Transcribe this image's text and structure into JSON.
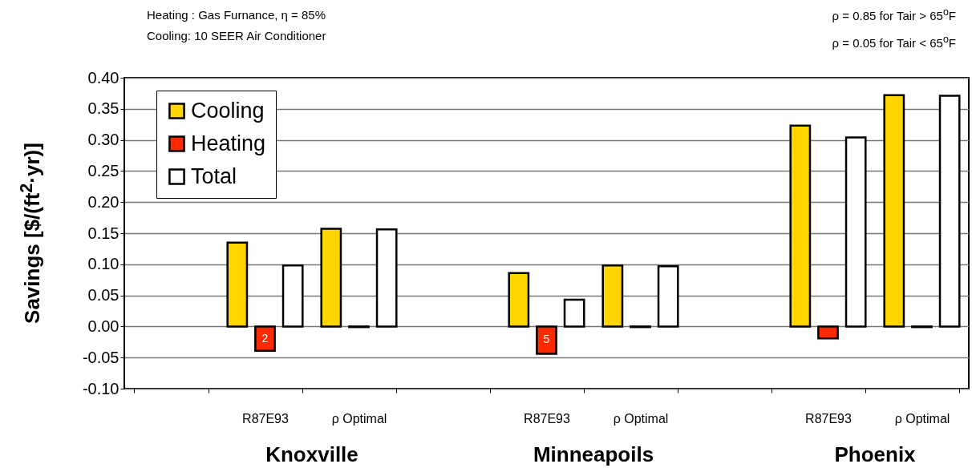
{
  "chart_data": {
    "type": "bar",
    "ylabel": "Savings [$/(ft$^{2}$·yr)]",
    "categories": [
      null,
      "R87E93",
      "ρ  Optimal",
      null,
      "R87E93",
      "ρ  Optimal",
      null,
      "R87E93",
      "ρ  Optimal"
    ],
    "series": [
      {
        "name": "Cooling",
        "color": "#ffd500",
        "values": [
          null,
          0.135,
          0.157,
          null,
          0.086,
          0.098,
          null,
          0.323,
          0.372
        ]
      },
      {
        "name": "Heating",
        "color": "#ff2a00",
        "values": [
          null,
          -0.039,
          -0.001,
          null,
          -0.044,
          -0.001,
          null,
          -0.019,
          -0.001
        ]
      },
      {
        "name": "Total",
        "color": "#ffffff",
        "values": [
          null,
          0.098,
          0.156,
          null,
          0.043,
          0.097,
          null,
          0.304,
          0.371
        ]
      }
    ],
    "ylim": [
      -0.1,
      0.4
    ],
    "yticks": [
      {
        "value": -0.1,
        "label": "-0.10"
      },
      {
        "value": -0.05,
        "label": "-0.05"
      },
      {
        "value": 0,
        "label": "0.00"
      },
      {
        "value": 0.05,
        "label": "0.05"
      },
      {
        "value": 0.1,
        "label": "0.10"
      },
      {
        "value": 0.15,
        "label": "0.15"
      },
      {
        "value": 0.2,
        "label": "0.20"
      },
      {
        "value": 0.25,
        "label": "0.25"
      },
      {
        "value": 0.3,
        "label": "0.30"
      },
      {
        "value": 0.35,
        "label": "0.35"
      },
      {
        "value": 0.4,
        "label": "0.40"
      }
    ],
    "grid": "y",
    "legend": "top left",
    "annotations": [
      "Heating : Gas Furnance, η = 85%",
      "Cooling: 10 SEER Air Conditioner",
      "ρ = 0.85 for Tair > 65$^{o}$F",
      "ρ = 0.05 for Tair < 65$^{o}$F",
      "Knoxville",
      "Minneapoils",
      "Phoenix",
      "2",
      "5"
    ]
  }
}
